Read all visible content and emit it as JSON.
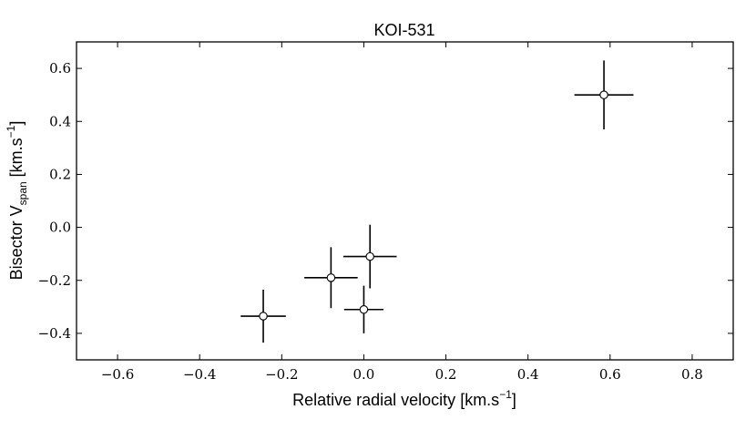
{
  "chart_data": {
    "type": "scatter",
    "title": "KOI-531",
    "xlabel": {
      "text": "Relative radial velocity [km.s",
      "superscript": "−1",
      "suffix": "]"
    },
    "ylabel": {
      "text": "Bisector V",
      "subscript": "span",
      "mid": " [km.s",
      "superscript": "−1",
      "suffix": "]"
    },
    "xlim": [
      -0.7,
      0.9
    ],
    "ylim": [
      -0.5,
      0.7
    ],
    "xticks": [
      -0.6,
      -0.4,
      -0.2,
      0.0,
      0.2,
      0.4,
      0.6,
      0.8
    ],
    "xtick_labels": [
      "−0.6",
      "−0.4",
      "−0.2",
      "0.0",
      "0.2",
      "0.4",
      "0.6",
      "0.8"
    ],
    "yticks": [
      -0.4,
      -0.2,
      0.0,
      0.2,
      0.4,
      0.6
    ],
    "ytick_labels": [
      "−0.4",
      "−0.2",
      "0.0",
      "0.2",
      "0.4",
      "0.6"
    ],
    "grid": false,
    "marker": "open-circle",
    "colors": {
      "marker_fill": "#ffffff",
      "marker_edge": "#000000",
      "errorbar": "#000000"
    },
    "points": [
      {
        "x": 0.585,
        "y": 0.5,
        "xerr": 0.072,
        "yerr": 0.13
      },
      {
        "x": 0.015,
        "y": -0.11,
        "xerr": 0.065,
        "yerr": 0.12
      },
      {
        "x": -0.08,
        "y": -0.19,
        "xerr": 0.065,
        "yerr": 0.115
      },
      {
        "x": 0.0,
        "y": -0.31,
        "xerr": 0.048,
        "yerr": 0.09
      },
      {
        "x": -0.245,
        "y": -0.335,
        "xerr": 0.055,
        "yerr": 0.1
      }
    ]
  }
}
